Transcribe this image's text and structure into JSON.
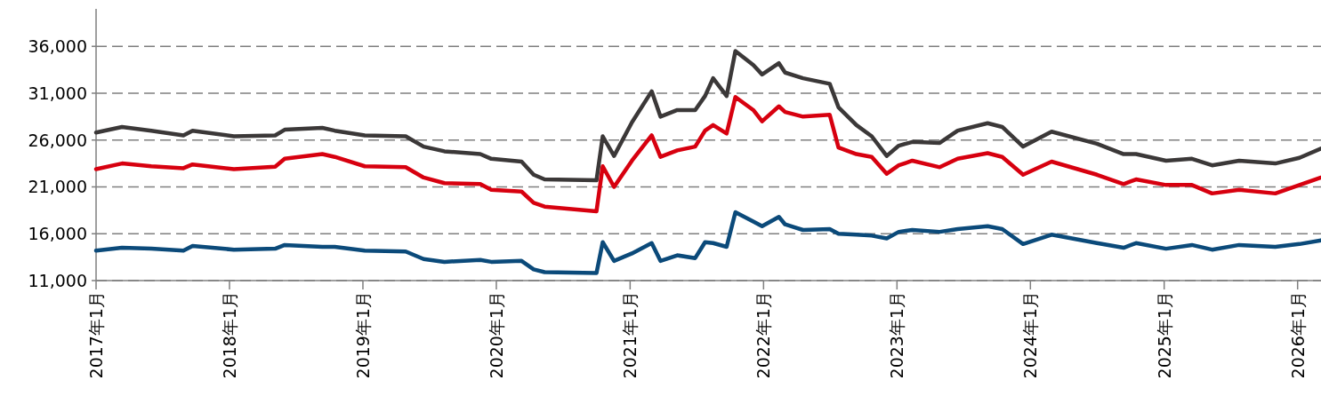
{
  "chart_data": {
    "type": "line",
    "marker": "none",
    "line_style": "solid",
    "grid": "y",
    "xlim": [
      "2017-01-01",
      "2026-03-06"
    ],
    "ylim": [
      11000,
      40000
    ],
    "yticks": [
      {
        "value": 11000,
        "label": "11,000"
      },
      {
        "value": 16000,
        "label": "16,000"
      },
      {
        "value": 21000,
        "label": "21,000"
      },
      {
        "value": 26000,
        "label": "26,000"
      },
      {
        "value": 31000,
        "label": "31,000"
      },
      {
        "value": 36000,
        "label": "36,000"
      }
    ],
    "xticks": [
      {
        "value": "2017-01",
        "label": "2017年1月"
      },
      {
        "value": "2018-01",
        "label": "2018年1月"
      },
      {
        "value": "2019-01",
        "label": "2019年1月"
      },
      {
        "value": "2020-01",
        "label": "2020年1月"
      },
      {
        "value": "2021-01",
        "label": "2021年1月"
      },
      {
        "value": "2022-01",
        "label": "2022年1月"
      },
      {
        "value": "2023-01",
        "label": "2023年1月"
      },
      {
        "value": "2024-01",
        "label": "2024年1月"
      },
      {
        "value": "2025-01",
        "label": "2025年1月"
      },
      {
        "value": "2026-01",
        "label": "2026年1月"
      }
    ],
    "x": [
      "2017-01-01",
      "2017-03-13",
      "2017-06-01",
      "2017-08-28",
      "2017-09-22",
      "2018-01-13",
      "2018-05-06",
      "2018-06-01",
      "2018-09-12",
      "2018-10-16",
      "2019-01-06",
      "2019-04-28",
      "2019-06-16",
      "2019-08-12",
      "2019-11-18",
      "2019-12-18",
      "2020-03-10",
      "2020-04-12",
      "2020-05-12",
      "2020-10-01",
      "2020-10-18",
      "2020-11-18",
      "2021-01-06",
      "2021-03-01",
      "2021-03-25",
      "2021-05-10",
      "2021-06-28",
      "2021-07-25",
      "2021-08-16",
      "2021-09-22",
      "2021-10-16",
      "2021-12-04",
      "2021-12-28",
      "2022-02-12",
      "2022-03-01",
      "2022-04-19",
      "2022-07-01",
      "2022-07-25",
      "2022-09-12",
      "2022-10-24",
      "2022-12-04",
      "2023-01-06",
      "2023-02-12",
      "2023-04-28",
      "2023-06-16",
      "2023-09-06",
      "2023-10-16",
      "2023-12-12",
      "2024-02-28",
      "2024-07-01",
      "2024-09-12",
      "2024-10-16",
      "2025-01-06",
      "2025-03-18",
      "2025-05-12",
      "2025-07-25",
      "2025-11-01",
      "2026-01-06",
      "2026-03-06"
    ],
    "series": [
      {
        "color": "#3b3838",
        "values": [
          26800,
          27400,
          27000,
          26500,
          27000,
          26400,
          26500,
          27100,
          27300,
          27000,
          26500,
          26400,
          25300,
          24800,
          24500,
          24000,
          23700,
          22300,
          21800,
          21700,
          26400,
          24300,
          27900,
          31200,
          28500,
          29200,
          29200,
          30700,
          32600,
          30700,
          35500,
          34000,
          33000,
          34200,
          33200,
          32600,
          32000,
          29500,
          27600,
          26400,
          24300,
          25400,
          25800,
          25700,
          27000,
          27800,
          27400,
          25300,
          26900,
          25600,
          24500,
          24500,
          23800,
          24000,
          23300,
          23800,
          23500,
          24100,
          25100
        ]
      },
      {
        "color": "#d7000f",
        "values": [
          22900,
          23500,
          23200,
          23000,
          23400,
          22900,
          23150,
          24000,
          24500,
          24200,
          23200,
          23100,
          22000,
          21400,
          21300,
          20700,
          20500,
          19300,
          18900,
          18400,
          23200,
          21000,
          23800,
          26500,
          24200,
          24900,
          25300,
          27000,
          27600,
          26700,
          30600,
          29200,
          28000,
          29600,
          29000,
          28500,
          28700,
          25200,
          24500,
          24200,
          22400,
          23300,
          23800,
          23100,
          24000,
          24600,
          24200,
          22300,
          23700,
          22300,
          21300,
          21800,
          21200,
          21200,
          20300,
          20700,
          20300,
          21200,
          22000
        ]
      },
      {
        "color": "#0b4a7a",
        "values": [
          14200,
          14500,
          14400,
          14200,
          14700,
          14300,
          14400,
          14800,
          14600,
          14600,
          14200,
          14100,
          13300,
          13000,
          13200,
          13000,
          13100,
          12200,
          11900,
          11800,
          15100,
          13100,
          13900,
          15000,
          13100,
          13700,
          13400,
          15100,
          15000,
          14600,
          18300,
          17300,
          16800,
          17800,
          17000,
          16400,
          16500,
          16000,
          15900,
          15800,
          15500,
          16200,
          16400,
          16200,
          16500,
          16800,
          16500,
          14900,
          15900,
          15000,
          14500,
          15000,
          14400,
          14800,
          14300,
          14800,
          14600,
          14900,
          15300
        ]
      }
    ]
  }
}
